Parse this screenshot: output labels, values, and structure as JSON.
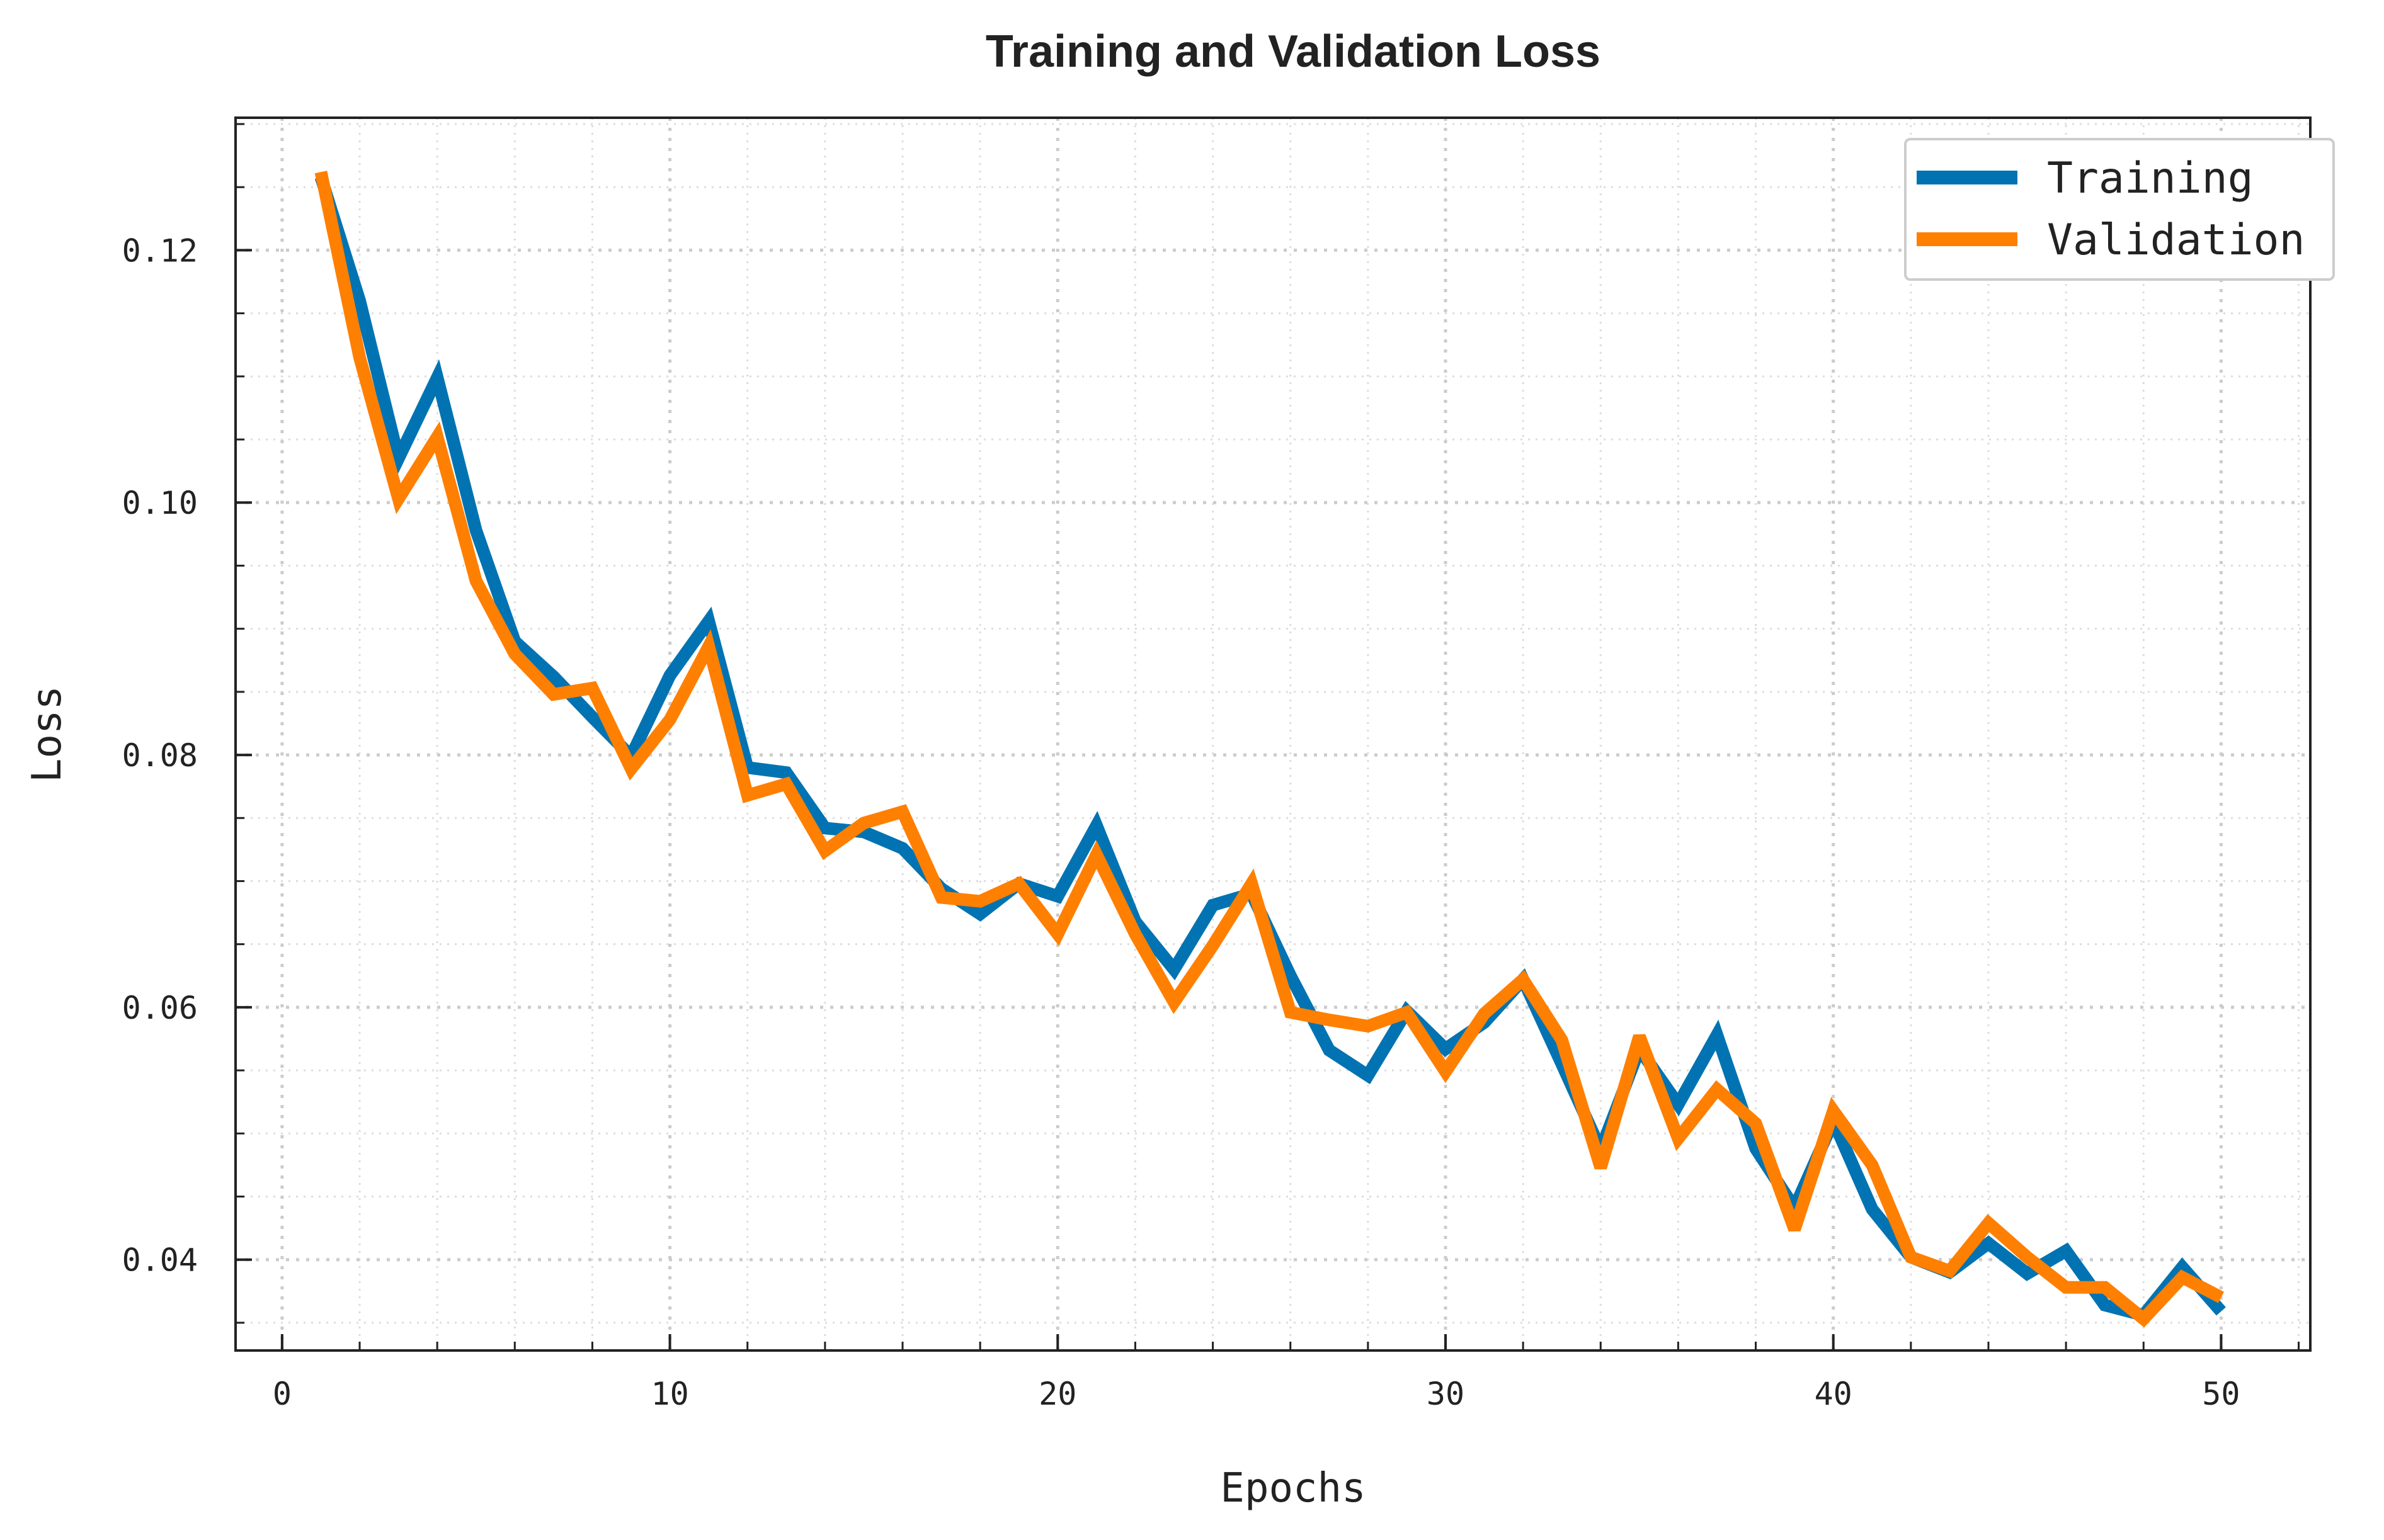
{
  "chart_data": {
    "type": "line",
    "title": "Training and Validation Loss",
    "xlabel": "Epochs",
    "ylabel": "Loss",
    "xlim": [
      -1.2,
      52.3
    ],
    "ylim": [
      0.0328,
      0.1305
    ],
    "xticks": [
      0,
      10,
      20,
      30,
      40,
      50
    ],
    "xtick_labels": [
      "0",
      "10",
      "20",
      "30",
      "40",
      "50"
    ],
    "yticks": [
      0.04,
      0.06,
      0.08,
      0.1,
      0.12
    ],
    "ytick_labels": [
      "0.04",
      "0.06",
      "0.08",
      "0.10",
      "0.12"
    ],
    "grid": true,
    "legend_position": "top-right",
    "x": [
      1,
      2,
      3,
      4,
      5,
      6,
      7,
      8,
      9,
      10,
      11,
      12,
      13,
      14,
      15,
      16,
      17,
      18,
      19,
      20,
      21,
      22,
      23,
      24,
      25,
      26,
      27,
      28,
      29,
      30,
      31,
      32,
      33,
      34,
      35,
      36,
      37,
      38,
      39,
      40,
      41,
      42,
      43,
      44,
      45,
      46,
      47,
      48,
      49,
      50
    ],
    "series": [
      {
        "name": "Training",
        "color": "#0173b2",
        "values": [
          0.1258,
          0.116,
          0.1035,
          0.1099,
          0.0978,
          0.089,
          0.0862,
          0.083,
          0.0799,
          0.0863,
          0.0906,
          0.079,
          0.0786,
          0.0742,
          0.0739,
          0.0726,
          0.0694,
          0.0674,
          0.0698,
          0.0688,
          0.0744,
          0.0668,
          0.063,
          0.0681,
          0.069,
          0.0625,
          0.0566,
          0.0546,
          0.0597,
          0.0567,
          0.0588,
          0.0622,
          0.0555,
          0.0487,
          0.0567,
          0.0523,
          0.0578,
          0.0488,
          0.0441,
          0.051,
          0.044,
          0.0402,
          0.039,
          0.0413,
          0.0389,
          0.0407,
          0.0364,
          0.0356,
          0.0394,
          0.0359
        ]
      },
      {
        "name": "Validation",
        "color": "#ff7f00",
        "values": [
          0.1262,
          0.1115,
          0.1003,
          0.1052,
          0.0938,
          0.088,
          0.0848,
          0.0853,
          0.0789,
          0.0828,
          0.0886,
          0.0768,
          0.0777,
          0.0724,
          0.0746,
          0.0755,
          0.0687,
          0.0684,
          0.0698,
          0.0658,
          0.0721,
          0.0658,
          0.0604,
          0.0649,
          0.0698,
          0.0596,
          0.059,
          0.0585,
          0.0596,
          0.0549,
          0.0595,
          0.0622,
          0.0574,
          0.0473,
          0.0577,
          0.0496,
          0.0535,
          0.0508,
          0.0424,
          0.0518,
          0.0475,
          0.0402,
          0.0391,
          0.0429,
          0.0402,
          0.0378,
          0.0378,
          0.0353,
          0.0386,
          0.037
        ]
      }
    ]
  }
}
